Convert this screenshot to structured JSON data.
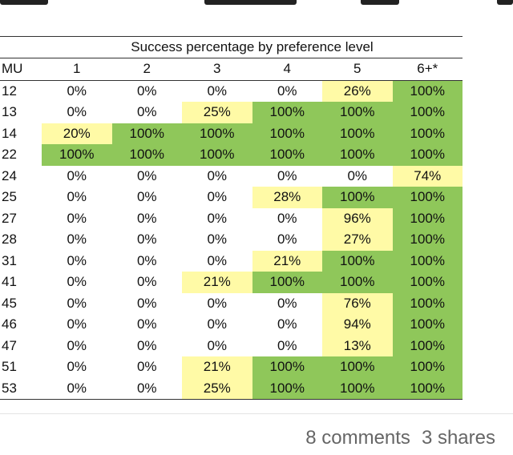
{
  "table": {
    "title": "Success percentage by preference level",
    "headers": [
      "MU",
      "1",
      "2",
      "3",
      "4",
      "5",
      "6+*"
    ],
    "rows": [
      {
        "mu": "12",
        "cells": [
          [
            "0%",
            "v"
          ],
          [
            "0%",
            "v"
          ],
          [
            "0%",
            "v"
          ],
          [
            "0%",
            "v"
          ],
          [
            "26%",
            "y"
          ],
          [
            "100%",
            "g"
          ]
        ]
      },
      {
        "mu": "13",
        "cells": [
          [
            "0%",
            "v"
          ],
          [
            "0%",
            "v"
          ],
          [
            "25%",
            "y"
          ],
          [
            "100%",
            "g"
          ],
          [
            "100%",
            "g"
          ],
          [
            "100%",
            "g"
          ]
        ]
      },
      {
        "mu": "14",
        "cells": [
          [
            "20%",
            "y"
          ],
          [
            "100%",
            "g"
          ],
          [
            "100%",
            "g"
          ],
          [
            "100%",
            "g"
          ],
          [
            "100%",
            "g"
          ],
          [
            "100%",
            "g"
          ]
        ]
      },
      {
        "mu": "22",
        "cells": [
          [
            "100%",
            "g"
          ],
          [
            "100%",
            "g"
          ],
          [
            "100%",
            "g"
          ],
          [
            "100%",
            "g"
          ],
          [
            "100%",
            "g"
          ],
          [
            "100%",
            "g"
          ]
        ]
      },
      {
        "mu": "24",
        "cells": [
          [
            "0%",
            "v"
          ],
          [
            "0%",
            "v"
          ],
          [
            "0%",
            "v"
          ],
          [
            "0%",
            "v"
          ],
          [
            "0%",
            "v"
          ],
          [
            "74%",
            "y"
          ]
        ]
      },
      {
        "mu": "25",
        "cells": [
          [
            "0%",
            "v"
          ],
          [
            "0%",
            "v"
          ],
          [
            "0%",
            "v"
          ],
          [
            "28%",
            "y"
          ],
          [
            "100%",
            "g"
          ],
          [
            "100%",
            "g"
          ]
        ]
      },
      {
        "mu": "27",
        "cells": [
          [
            "0%",
            "v"
          ],
          [
            "0%",
            "v"
          ],
          [
            "0%",
            "v"
          ],
          [
            "0%",
            "v"
          ],
          [
            "96%",
            "y"
          ],
          [
            "100%",
            "g"
          ]
        ]
      },
      {
        "mu": "28",
        "cells": [
          [
            "0%",
            "v"
          ],
          [
            "0%",
            "v"
          ],
          [
            "0%",
            "v"
          ],
          [
            "0%",
            "v"
          ],
          [
            "27%",
            "y"
          ],
          [
            "100%",
            "g"
          ]
        ]
      },
      {
        "mu": "31",
        "cells": [
          [
            "0%",
            "v"
          ],
          [
            "0%",
            "v"
          ],
          [
            "0%",
            "v"
          ],
          [
            "21%",
            "y"
          ],
          [
            "100%",
            "g"
          ],
          [
            "100%",
            "g"
          ]
        ]
      },
      {
        "mu": "41",
        "cells": [
          [
            "0%",
            "v"
          ],
          [
            "0%",
            "v"
          ],
          [
            "21%",
            "y"
          ],
          [
            "100%",
            "g"
          ],
          [
            "100%",
            "g"
          ],
          [
            "100%",
            "g"
          ]
        ]
      },
      {
        "mu": "45",
        "cells": [
          [
            "0%",
            "v"
          ],
          [
            "0%",
            "v"
          ],
          [
            "0%",
            "v"
          ],
          [
            "0%",
            "v"
          ],
          [
            "76%",
            "y"
          ],
          [
            "100%",
            "g"
          ]
        ]
      },
      {
        "mu": "46",
        "cells": [
          [
            "0%",
            "v"
          ],
          [
            "0%",
            "v"
          ],
          [
            "0%",
            "v"
          ],
          [
            "0%",
            "v"
          ],
          [
            "94%",
            "y"
          ],
          [
            "100%",
            "g"
          ]
        ]
      },
      {
        "mu": "47",
        "cells": [
          [
            "0%",
            "v"
          ],
          [
            "0%",
            "v"
          ],
          [
            "0%",
            "v"
          ],
          [
            "0%",
            "v"
          ],
          [
            "13%",
            "y"
          ],
          [
            "100%",
            "g"
          ]
        ]
      },
      {
        "mu": "51",
        "cells": [
          [
            "0%",
            "v"
          ],
          [
            "0%",
            "v"
          ],
          [
            "21%",
            "y"
          ],
          [
            "100%",
            "g"
          ],
          [
            "100%",
            "g"
          ],
          [
            "100%",
            "g"
          ]
        ]
      },
      {
        "mu": "53",
        "cells": [
          [
            "0%",
            "v"
          ],
          [
            "0%",
            "v"
          ],
          [
            "25%",
            "y"
          ],
          [
            "100%",
            "g"
          ],
          [
            "100%",
            "g"
          ],
          [
            "100%",
            "g"
          ]
        ]
      }
    ]
  },
  "colors": {
    "green": "#8fc75a",
    "yellow": "#fffaa6",
    "white": "#ffffff"
  },
  "footer": {
    "comments": "8 comments",
    "shares": "3 shares"
  }
}
